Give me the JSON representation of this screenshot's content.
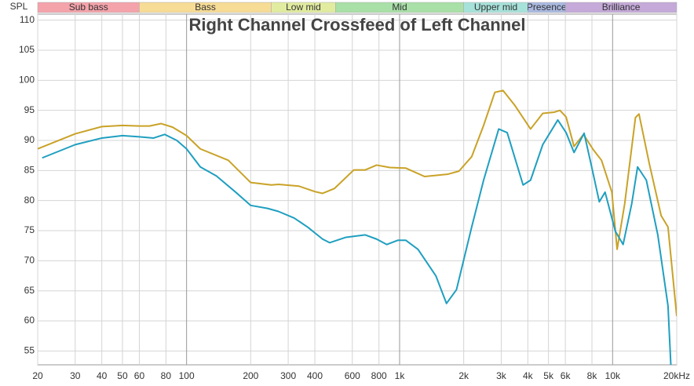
{
  "chart_data": {
    "type": "line",
    "title": "Right Channel Crossfeed of Left Channel",
    "y_label": "SPL",
    "log_x": true,
    "grid": true,
    "xlim": [
      20,
      20000
    ],
    "ylim": [
      52.7,
      111
    ],
    "yticks": [
      55,
      60,
      65,
      70,
      75,
      80,
      85,
      90,
      95,
      100,
      105,
      110
    ],
    "xticks": [
      20,
      30,
      40,
      50,
      60,
      80,
      100,
      200,
      300,
      400,
      600,
      800,
      {
        "value": 1000,
        "label": "1k"
      },
      {
        "value": 2000,
        "label": "2k"
      },
      {
        "value": 3000,
        "label": "3k"
      },
      {
        "value": 4000,
        "label": "4k"
      },
      {
        "value": 5000,
        "label": "5k"
      },
      {
        "value": 6000,
        "label": "6k"
      },
      {
        "value": 8000,
        "label": "8k"
      },
      {
        "value": 10000,
        "label": "10k"
      },
      {
        "value": 20000,
        "label": "20kHz"
      }
    ],
    "bands": [
      {
        "name": "Sub bass",
        "from": 20,
        "to": 60,
        "color": "#f4a3ab"
      },
      {
        "name": "Bass",
        "from": 60,
        "to": 250,
        "color": "#f7dc96"
      },
      {
        "name": "Low mid",
        "from": 250,
        "to": 500,
        "color": "#e2eca0"
      },
      {
        "name": "Mid",
        "from": 500,
        "to": 2000,
        "color": "#a9e0a8"
      },
      {
        "name": "Upper mid",
        "from": 2000,
        "to": 4000,
        "color": "#a7e2da"
      },
      {
        "name": "Presence",
        "from": 4000,
        "to": 6000,
        "color": "#aab9e0"
      },
      {
        "name": "Brilliance",
        "from": 6000,
        "to": 20000,
        "color": "#c4a9d9"
      }
    ],
    "series": [
      {
        "color": "#c9a227",
        "x": [
          20,
          30,
          40,
          50,
          60,
          67,
          76,
          86,
          100,
          116,
          157,
          200,
          250,
          270,
          337,
          400,
          435,
          494,
          610,
          690,
          780,
          900,
          1070,
          1310,
          1690,
          1900,
          2180,
          2480,
          2800,
          3060,
          3480,
          4120,
          4700,
          5330,
          5660,
          6050,
          6590,
          7300,
          8100,
          8870,
          9920,
          10500,
          11400,
          12800,
          13300,
          14900,
          16900,
          18200,
          20000
        ],
        "values": [
          88.6,
          91.1,
          92.3,
          92.5,
          92.4,
          92.4,
          92.8,
          92.2,
          90.8,
          88.6,
          86.7,
          83.0,
          82.6,
          82.7,
          82.4,
          81.5,
          81.2,
          82.0,
          85.1,
          85.1,
          85.9,
          85.5,
          85.4,
          84.0,
          84.4,
          84.9,
          87.3,
          92.5,
          98.0,
          98.3,
          95.8,
          91.9,
          94.5,
          94.7,
          95.0,
          93.9,
          89.0,
          91.0,
          88.5,
          86.7,
          81.4,
          71.9,
          79.5,
          93.8,
          94.4,
          86.0,
          77.5,
          75.6,
          60.8
        ]
      },
      {
        "color": "#1f9fc0",
        "x": [
          21,
          30,
          40,
          50,
          60,
          70,
          79,
          90,
          100,
          116,
          138,
          170,
          200,
          240,
          270,
          320,
          370,
          435,
          470,
          560,
          690,
          780,
          870,
          980,
          1070,
          1220,
          1480,
          1660,
          1850,
          2180,
          2480,
          2920,
          3200,
          3800,
          4120,
          4700,
          5530,
          6050,
          6590,
          7350,
          7930,
          8660,
          9220,
          10300,
          11200,
          12300,
          13100,
          14400,
          16300,
          18200,
          18800
        ],
        "values": [
          87.1,
          89.3,
          90.4,
          90.8,
          90.6,
          90.4,
          91.0,
          90.0,
          88.6,
          85.6,
          84.1,
          81.4,
          79.2,
          78.7,
          78.2,
          77.1,
          75.6,
          73.6,
          73.0,
          73.9,
          74.3,
          73.6,
          72.7,
          73.4,
          73.4,
          71.9,
          67.5,
          62.9,
          65.2,
          75.6,
          83.4,
          91.9,
          91.3,
          82.6,
          83.4,
          89.3,
          93.4,
          91.3,
          88.0,
          91.2,
          86.0,
          79.8,
          81.4,
          74.9,
          72.7,
          79.5,
          85.6,
          83.4,
          74.3,
          62.5,
          52.1
        ]
      }
    ]
  }
}
